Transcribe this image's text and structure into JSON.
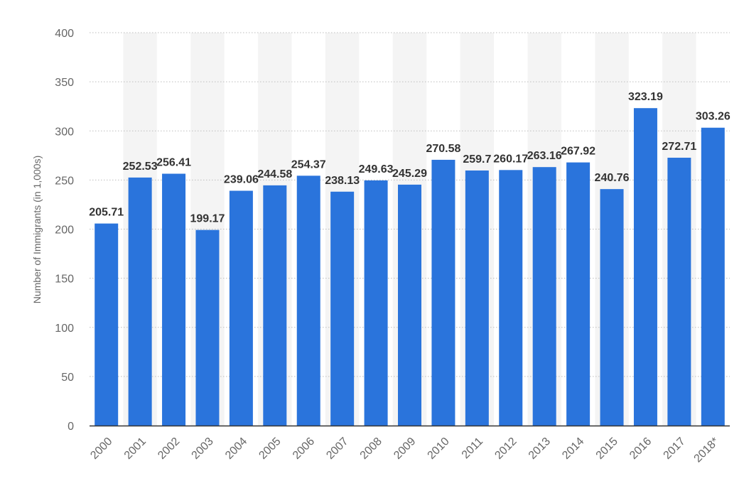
{
  "chart_data": {
    "type": "bar",
    "title": "",
    "xlabel": "",
    "ylabel": "Number of Immigrants (in 1,000s)",
    "ylim": [
      0,
      400
    ],
    "yticks": [
      0,
      50,
      100,
      150,
      200,
      250,
      300,
      350,
      400
    ],
    "grid": true,
    "legend": "none",
    "categories": [
      "2000",
      "2001",
      "2002",
      "2003",
      "2004",
      "2005",
      "2006",
      "2007",
      "2008",
      "2009",
      "2010",
      "2011",
      "2012",
      "2013",
      "2014",
      "2015",
      "2016",
      "2017",
      "2018*"
    ],
    "values": [
      205.71,
      252.53,
      256.41,
      199.17,
      239.06,
      244.58,
      254.37,
      238.13,
      249.63,
      245.29,
      270.58,
      259.7,
      260.17,
      263.16,
      267.92,
      240.76,
      323.19,
      272.71,
      303.26
    ],
    "value_labels": [
      "205.71",
      "252.53",
      "256.41",
      "199.17",
      "239.06",
      "244.58",
      "254.37",
      "238.13",
      "249.63",
      "245.29",
      "270.58",
      "259.7",
      "260.17",
      "263.16",
      "267.92",
      "240.76",
      "323.19",
      "272.71",
      "303.26"
    ],
    "colors": {
      "bar": "#2a74dc",
      "band": "#f4f4f4",
      "grid": "#bdbdbd",
      "axis": "#333333",
      "text": "#666666",
      "label": "#333333"
    }
  }
}
